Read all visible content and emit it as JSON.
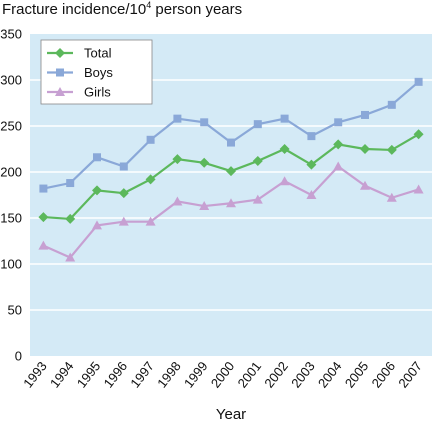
{
  "chart_data": {
    "type": "line",
    "title": "Fracture incidence/10",
    "title_sup": "4",
    "title_rest": " person years",
    "xlabel": "Year",
    "ylabel": "",
    "categories": [
      "1993",
      "1994",
      "1995",
      "1996",
      "1997",
      "1998",
      "1999",
      "2000",
      "2001",
      "2002",
      "2003",
      "2004",
      "2005",
      "2006",
      "2007"
    ],
    "ylim": [
      0,
      350
    ],
    "yticks": [
      0,
      50,
      100,
      150,
      200,
      250,
      300,
      350
    ],
    "grid": true,
    "legend_position": "top-left",
    "series": [
      {
        "name": "Total",
        "color": "#5cb85c",
        "marker": "diamond",
        "values": [
          151,
          149,
          180,
          177,
          192,
          214,
          210,
          201,
          212,
          225,
          208,
          230,
          225,
          224,
          241
        ]
      },
      {
        "name": "Boys",
        "color": "#8aa8d8",
        "marker": "square",
        "values": [
          182,
          188,
          216,
          206,
          235,
          258,
          254,
          232,
          252,
          258,
          239,
          254,
          262,
          273,
          298
        ]
      },
      {
        "name": "Girls",
        "color": "#c7a0d2",
        "marker": "triangle",
        "values": [
          120,
          107,
          142,
          146,
          146,
          168,
          163,
          166,
          170,
          190,
          175,
          206,
          185,
          172,
          181
        ]
      }
    ]
  }
}
